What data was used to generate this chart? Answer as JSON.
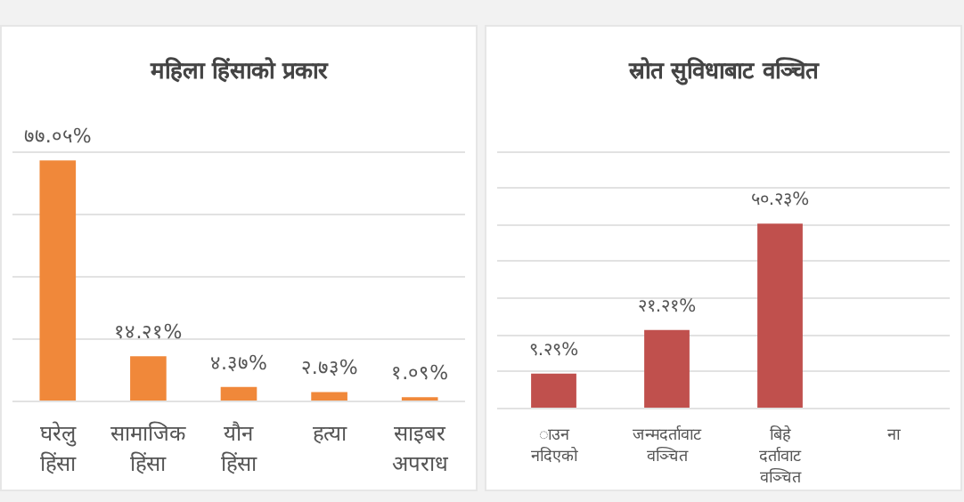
{
  "chart_data": [
    {
      "type": "bar",
      "title": "महिला हिंसाको प्रकार",
      "categories": [
        "घरेलु हिंसा",
        "सामाजिक हिंसा",
        "यौन हिंसा",
        "हत्या",
        "साइबर अपराध"
      ],
      "values": [
        77.05,
        14.21,
        4.37,
        2.73,
        1.09
      ],
      "value_labels": [
        "७७.०५%",
        "१४.२१%",
        "४.३७%",
        "२.७३%",
        "१.०९%"
      ],
      "color": "#f0883a",
      "ylim": [
        0,
        80
      ],
      "yticks": [
        {
          "value": 0,
          "label": null
        },
        {
          "value": 20,
          "label": null
        },
        {
          "value": 40,
          "label": null
        },
        {
          "value": 60,
          "label": null
        },
        {
          "value": 80,
          "label": null
        }
      ],
      "tick_labels": "x",
      "grid": "y"
    },
    {
      "type": "bar",
      "title": "स्रोत सुविधाबाट वञ्चित",
      "categories": [
        "ाउन नदिएको",
        "जन्मदर्तावाट वञ्चित",
        "बिहे दर्तावाट वञ्चित",
        "ना"
      ],
      "values": [
        9.29,
        21.21,
        50.23,
        null
      ],
      "value_labels": [
        "९.२९%",
        "२१.२१%",
        "५०.२३%",
        null
      ],
      "color": "#c0504d",
      "ylim": [
        0,
        70
      ],
      "yticks": [
        {
          "value": 0,
          "label": null
        },
        {
          "value": 10,
          "label": null
        },
        {
          "value": 20,
          "label": null
        },
        {
          "value": 30,
          "label": null
        },
        {
          "value": 40,
          "label": null
        },
        {
          "value": 50,
          "label": null
        },
        {
          "value": 60,
          "label": null
        },
        {
          "value": 70,
          "label": null
        }
      ],
      "tick_labels": "x",
      "grid": "y"
    }
  ]
}
